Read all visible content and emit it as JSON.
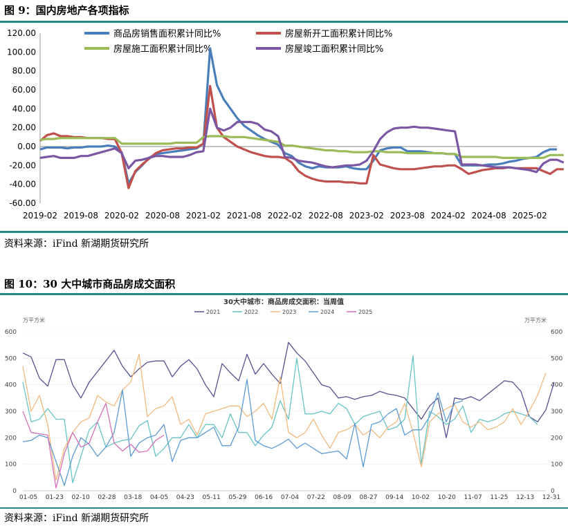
{
  "figure1": {
    "title": "图 9：国内房地产各项指标",
    "source": "资料来源：iFind 新湖期货研究所",
    "chart_data": {
      "type": "line",
      "title": "",
      "ylim": [
        -60,
        120
      ],
      "yticks": [
        120,
        100,
        80,
        60,
        40,
        20,
        0,
        -20,
        -40,
        -60
      ],
      "ytick_labels": [
        "120.00",
        "100.00",
        "80.00",
        "60.00",
        "40.00",
        "20.00",
        "0.00",
        "-20.00",
        "-40.00",
        "-60.00"
      ],
      "x_labels": [
        "2019-02",
        "2019-08",
        "2020-02",
        "2020-08",
        "2021-02",
        "2021-08",
        "2022-02",
        "2022-08",
        "2023-02",
        "2023-08",
        "2024-02",
        "2024-08",
        "2025-02"
      ],
      "x_start": "2019-02",
      "legend_position": "top",
      "series": [
        {
          "name": "商品房销售面积累计同比%",
          "color": "#4a7ebb",
          "values": [
            -3,
            -1,
            -1,
            -1,
            -2,
            -1,
            -1,
            0,
            0,
            0,
            1,
            0,
            -6,
            -39,
            -27,
            -20,
            -12,
            -8,
            -7,
            -6,
            -5,
            -4,
            -3,
            -2,
            3,
            104,
            65,
            50,
            40,
            30,
            22,
            17,
            12,
            8,
            5,
            2,
            -7,
            -10,
            -17,
            -21,
            -23,
            -21,
            -22,
            -22,
            -22,
            -21,
            -23,
            -24,
            -24,
            -15,
            -4,
            -2,
            -1,
            -1,
            -5,
            -5,
            -5,
            -6,
            -7,
            -7,
            -8,
            -8,
            -20,
            -20,
            -20,
            -20,
            -19,
            -19,
            -18,
            -16,
            -15,
            -13,
            -12,
            -11,
            -6,
            -3,
            -3
          ]
        },
        {
          "name": "房屋新开工面积累计同比%",
          "color": "#c0504d",
          "values": [
            6,
            12,
            14,
            11,
            11,
            10,
            10,
            9,
            9,
            9,
            8,
            8,
            -7,
            -44,
            -26,
            -19,
            -13,
            -7,
            -4,
            -3,
            -2,
            -2,
            -1,
            -1,
            3,
            64,
            20,
            10,
            5,
            0,
            -3,
            -6,
            -8,
            -10,
            -11,
            -11,
            -12,
            -17,
            -26,
            -31,
            -34,
            -36,
            -37,
            -37,
            -37,
            -38,
            -38,
            -39,
            -39,
            -9,
            -19,
            -21,
            -23,
            -24,
            -24,
            -24,
            -23,
            -22,
            -21,
            -21,
            -20,
            -20,
            -24,
            -29,
            -27,
            -25,
            -24,
            -23,
            -23,
            -22,
            -23,
            -23,
            -23,
            -23,
            -26,
            -29,
            -24,
            -24
          ]
        },
        {
          "name": "房屋施工面积累计同比%",
          "color": "#9bbb59",
          "values": [
            7,
            8,
            8,
            9,
            9,
            9,
            9,
            9,
            9,
            9,
            9,
            9,
            3,
            3,
            3,
            3,
            3,
            3,
            3,
            3,
            4,
            4,
            4,
            4,
            10,
            11,
            11,
            11,
            10,
            10,
            10,
            9,
            8,
            7,
            6,
            5,
            1,
            1,
            0,
            -1,
            -2,
            -3,
            -4,
            -4,
            -5,
            -5,
            -6,
            -6,
            -6,
            -5,
            -5,
            -6,
            -6,
            -6,
            -7,
            -7,
            -7,
            -7,
            -7,
            -7,
            -8,
            -8,
            -11,
            -11,
            -11,
            -11,
            -11,
            -11,
            -12,
            -12,
            -12,
            -12,
            -12,
            -12,
            -12,
            -9,
            -9,
            -9
          ]
        },
        {
          "name": "房屋竣工面积累计同比%",
          "color": "#7b57a3",
          "values": [
            -12,
            -11,
            -10,
            -12,
            -12,
            -12,
            -10,
            -10,
            -8,
            -6,
            -4,
            -2,
            -7,
            -23,
            -15,
            -14,
            -12,
            -10,
            -10,
            -11,
            -11,
            -11,
            -9,
            -6,
            -5,
            40,
            20,
            17,
            20,
            26,
            26,
            26,
            24,
            18,
            16,
            11,
            -11,
            -12,
            -15,
            -16,
            -17,
            -19,
            -21,
            -22,
            -21,
            -20,
            -20,
            -19,
            -15,
            -5,
            8,
            15,
            19,
            20,
            20,
            21,
            20,
            20,
            19,
            18,
            17,
            16,
            -19,
            -19,
            -19,
            -20,
            -21,
            -22,
            -22,
            -22,
            -23,
            -24,
            -25,
            -27,
            -18,
            -14,
            -14,
            -17
          ]
        }
      ]
    }
  },
  "figure2": {
    "title": "图 10：30 大中城市商品房成交面积",
    "source": "资料来源：iFind 新湖期货研究所",
    "chart_data": {
      "type": "line",
      "title": "30大中城市：商品房成交面积：当周值",
      "ylabel_left": "万平方米",
      "ylabel_right": "万平方米",
      "ylim": [
        0,
        600
      ],
      "yticks": [
        0,
        100,
        200,
        300,
        400,
        500,
        600
      ],
      "x_labels": [
        "01-05",
        "01-23",
        "02-10",
        "02-28",
        "03-18",
        "04-05",
        "04-23",
        "05-11",
        "05-29",
        "06-16",
        "07-04",
        "07-22",
        "08-09",
        "08-27",
        "09-14",
        "10-02",
        "10-20",
        "11-07",
        "11-25",
        "12-13",
        "12-31"
      ],
      "x_start": "01-05",
      "x_step_days": 6,
      "legend_position": "top",
      "series": [
        {
          "name": "2021",
          "color": "#55508f",
          "values": [
            520,
            505,
            425,
            395,
            495,
            495,
            400,
            350,
            410,
            450,
            490,
            530,
            470,
            430,
            460,
            485,
            490,
            490,
            430,
            470,
            495,
            460,
            400,
            355,
            480,
            445,
            415,
            515,
            440,
            480,
            440,
            405,
            560,
            520,
            490,
            445,
            400,
            390,
            350,
            355,
            345,
            355,
            360,
            375,
            365,
            360,
            350,
            310,
            270,
            320,
            350,
            200,
            350,
            345,
            355,
            340,
            365,
            390,
            415,
            410,
            375,
            280,
            260,
            305,
            410
          ]
        },
        {
          "name": "2022",
          "color": "#67c4c4",
          "values": [
            410,
            260,
            270,
            310,
            270,
            270,
            30,
            130,
            230,
            260,
            165,
            180,
            190,
            195,
            245,
            265,
            130,
            160,
            200,
            200,
            250,
            200,
            250,
            250,
            200,
            290,
            220,
            220,
            170,
            210,
            240,
            340,
            270,
            500,
            290,
            290,
            300,
            290,
            330,
            310,
            250,
            280,
            290,
            300,
            230,
            240,
            270,
            510,
            100,
            300,
            280,
            250,
            270,
            320,
            220,
            270,
            260,
            270,
            290,
            300,
            290,
            280,
            250
          ]
        },
        {
          "name": "2023",
          "color": "#f2b97e",
          "values": [
            470,
            300,
            360,
            250,
            40,
            160,
            220,
            260,
            275,
            360,
            335,
            320,
            380,
            410,
            515,
            280,
            310,
            320,
            355,
            250,
            270,
            210,
            290,
            300,
            310,
            320,
            320,
            280,
            300,
            330,
            270,
            430,
            220,
            200,
            220,
            270,
            210,
            160,
            220,
            230,
            250,
            210,
            230,
            200,
            240,
            260,
            330,
            220,
            90,
            260,
            290,
            310,
            325,
            260,
            240,
            260,
            230,
            240,
            260,
            310,
            250,
            300,
            360,
            445
          ]
        },
        {
          "name": "2024",
          "color": "#5b9bd5",
          "values": [
            185,
            190,
            210,
            200,
            110,
            20,
            130,
            200,
            175,
            130,
            165,
            220,
            380,
            130,
            180,
            200,
            210,
            250,
            110,
            190,
            200,
            200,
            220,
            240,
            170,
            170,
            240,
            420,
            190,
            170,
            160,
            175,
            195,
            160,
            180,
            160,
            140,
            145,
            150,
            120,
            255,
            90,
            250,
            260,
            290,
            310,
            210,
            230,
            230,
            280,
            370,
            260,
            330,
            340
          ]
        },
        {
          "name": "2025",
          "color": "#d66fb5",
          "values": [
            300,
            220,
            215,
            210,
            10,
            140,
            220,
            165,
            180,
            260,
            330,
            180,
            150,
            175,
            145,
            150,
            190,
            210
          ]
        }
      ]
    }
  }
}
